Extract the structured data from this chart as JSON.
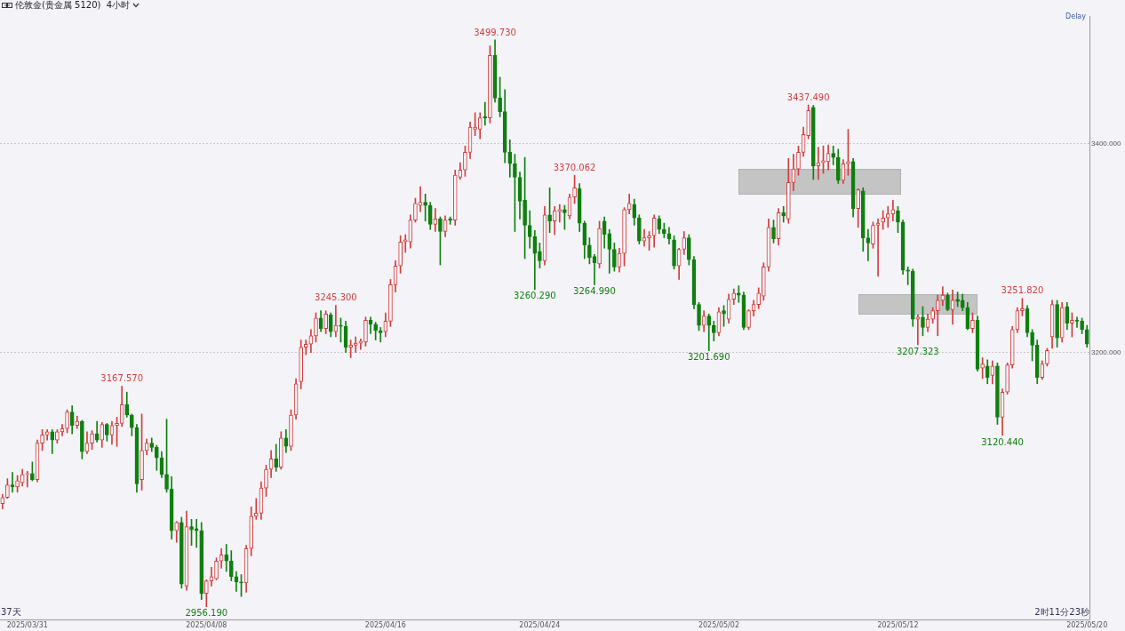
{
  "chart_data": {
    "type": "candlestick",
    "title": "伦敦金(贵金属 5120)  4小时",
    "categories": [
      null,
      null,
      null,
      null,
      null,
      "2025/03/31",
      null,
      null,
      null,
      null,
      null,
      null,
      null,
      null,
      null,
      null,
      null,
      null,
      null,
      null,
      null,
      null,
      null,
      null,
      null,
      null,
      null,
      null,
      null,
      null,
      null,
      null,
      null,
      null,
      null,
      null,
      null,
      null,
      null,
      null,
      null,
      "2025/04/08",
      null,
      null,
      null,
      null,
      null,
      null,
      null,
      null,
      null,
      null,
      null,
      null,
      null,
      null,
      null,
      null,
      null,
      null,
      null,
      null,
      null,
      null,
      null,
      null,
      null,
      null,
      null,
      null,
      null,
      null,
      null,
      null,
      null,
      null,
      null,
      "2025/04/16",
      null,
      null,
      null,
      null,
      null,
      null,
      null,
      null,
      null,
      null,
      null,
      null,
      null,
      null,
      null,
      null,
      null,
      null,
      null,
      null,
      null,
      null,
      null,
      null,
      null,
      null,
      null,
      null,
      null,
      null,
      "2025/04/24",
      null,
      null,
      null,
      null,
      null,
      null,
      null,
      null,
      null,
      null,
      null,
      null,
      null,
      null,
      null,
      null,
      null,
      null,
      null,
      null,
      null,
      null,
      null,
      null,
      null,
      null,
      null,
      null,
      null,
      null,
      null,
      null,
      null,
      null,
      null,
      "2025/05/02",
      null,
      null,
      null,
      null,
      null,
      null,
      null,
      null,
      null,
      null,
      null,
      null,
      null,
      null,
      null,
      null,
      null,
      null,
      null,
      null,
      null,
      null,
      null,
      null,
      null,
      null,
      null,
      null,
      null,
      null,
      null,
      null,
      null,
      null,
      null,
      "2025/05/12",
      null,
      null,
      null,
      null,
      null,
      null,
      null,
      null,
      null,
      null,
      null,
      null,
      null,
      null,
      null,
      null,
      null,
      null,
      null,
      null,
      null,
      null,
      null,
      null,
      null,
      null,
      null,
      null,
      null,
      null,
      null,
      null,
      null,
      null,
      null,
      null,
      null,
      "2025/05/20"
    ],
    "ohlc": [
      [
        3055,
        3064,
        3050,
        3061
      ],
      [
        3061,
        3079,
        3060,
        3073
      ],
      [
        3073,
        3085,
        3066,
        3071
      ],
      [
        3071,
        3082,
        3066,
        3077
      ],
      [
        3075,
        3088,
        3072,
        3083
      ],
      [
        3083,
        3086,
        3071,
        3084
      ],
      [
        3084,
        3095,
        3077,
        3078
      ],
      [
        3078,
        3116,
        3076,
        3113
      ],
      [
        3113,
        3126,
        3106,
        3121
      ],
      [
        3121,
        3126,
        3116,
        3124
      ],
      [
        3124,
        3126,
        3103,
        3116
      ],
      [
        3116,
        3126,
        3113,
        3124
      ],
      [
        3124,
        3131,
        3120,
        3127
      ],
      [
        3127,
        3145,
        3123,
        3143
      ],
      [
        3143,
        3149,
        3122,
        3130
      ],
      [
        3130,
        3139,
        3127,
        3134
      ],
      [
        3134,
        3135,
        3098,
        3105
      ],
      [
        3105,
        3124,
        3103,
        3113
      ],
      [
        3113,
        3125,
        3107,
        3122
      ],
      [
        3122,
        3134,
        3114,
        3116
      ],
      [
        3116,
        3133,
        3109,
        3131
      ],
      [
        3131,
        3132,
        3115,
        3121
      ],
      [
        3121,
        3134,
        3112,
        3130
      ],
      [
        3130,
        3138,
        3110,
        3132
      ],
      [
        3132,
        3167.57,
        3129,
        3150
      ],
      [
        3150,
        3162,
        3138,
        3140
      ],
      [
        3140,
        3141,
        3120,
        3128
      ],
      [
        3128,
        3131,
        3066,
        3074
      ],
      [
        3078,
        3141,
        3068,
        3106
      ],
      [
        3106,
        3117,
        3102,
        3113
      ],
      [
        3113,
        3118,
        3105,
        3109
      ],
      [
        3109,
        3111,
        3087,
        3099
      ],
      [
        3099,
        3105,
        3080,
        3083
      ],
      [
        3083,
        3136,
        3066,
        3069
      ],
      [
        3069,
        3081,
        3021,
        3029
      ],
      [
        3029,
        3038,
        3018,
        3037
      ],
      [
        3037,
        3042,
        2974,
        2978
      ],
      [
        2976,
        3048,
        2972,
        3033
      ],
      [
        3033,
        3040,
        3015,
        3030
      ],
      [
        3031,
        3040,
        3013,
        3029
      ],
      [
        3029,
        3037,
        2963,
        2969
      ],
      [
        2969,
        2982,
        2956.19,
        2981
      ],
      [
        2981,
        2994,
        2976,
        2985
      ],
      [
        2983,
        3003,
        2982,
        3000
      ],
      [
        3000,
        3012,
        2993,
        3006
      ],
      [
        3006,
        3016,
        2990,
        3000
      ],
      [
        3000,
        3010,
        2981,
        2985
      ],
      [
        2985,
        2990,
        2971,
        2980
      ],
      [
        2980,
        2987,
        2966,
        2979
      ],
      [
        2979,
        3015,
        2970,
        3012
      ],
      [
        3012,
        3052,
        3005,
        3043
      ],
      [
        3043,
        3060,
        3040,
        3046
      ],
      [
        3046,
        3076,
        3040,
        3070
      ],
      [
        3070,
        3092,
        3062,
        3088
      ],
      [
        3088,
        3106,
        3080,
        3098
      ],
      [
        3098,
        3112,
        3086,
        3090
      ],
      [
        3090,
        3124,
        3088,
        3118
      ],
      [
        3118,
        3126,
        3104,
        3110
      ],
      [
        3110,
        3145,
        3106,
        3140
      ],
      [
        3140,
        3175,
        3136,
        3170
      ],
      [
        3172,
        3212,
        3165,
        3205
      ],
      [
        3205,
        3212,
        3198,
        3208
      ],
      [
        3208,
        3222,
        3200,
        3216
      ],
      [
        3216,
        3238,
        3210,
        3233
      ],
      [
        3233,
        3240,
        3220,
        3223
      ],
      [
        3223,
        3240,
        3218,
        3237
      ],
      [
        3236,
        3238,
        3215,
        3220
      ],
      [
        3220,
        3245.3,
        3215,
        3226
      ],
      [
        3226,
        3233,
        3210,
        3225
      ],
      [
        3225,
        3230,
        3200,
        3205
      ],
      [
        3205,
        3212,
        3195,
        3207
      ],
      [
        3207,
        3215,
        3200,
        3209
      ],
      [
        3209,
        3213,
        3203,
        3211
      ],
      [
        3210,
        3234,
        3206,
        3231
      ],
      [
        3231,
        3234,
        3218,
        3227
      ],
      [
        3227,
        3229,
        3212,
        3221
      ],
      [
        3221,
        3224,
        3210,
        3219
      ],
      [
        3220,
        3238,
        3215,
        3230
      ],
      [
        3230,
        3270,
        3225,
        3265
      ],
      [
        3265,
        3288,
        3258,
        3283
      ],
      [
        3283,
        3312,
        3276,
        3306
      ],
      [
        3306,
        3313,
        3296,
        3308
      ],
      [
        3306,
        3332,
        3300,
        3327
      ],
      [
        3327,
        3348,
        3325,
        3343
      ],
      [
        3341,
        3359,
        3335,
        3344
      ],
      [
        3344,
        3352,
        3326,
        3341
      ],
      [
        3341,
        3344,
        3318,
        3323
      ],
      [
        3323,
        3338,
        3316,
        3328
      ],
      [
        3328,
        3330,
        3284,
        3316
      ],
      [
        3316,
        3331,
        3311,
        3327
      ],
      [
        3328,
        3330,
        3323,
        3327
      ],
      [
        3327,
        3375,
        3322,
        3370
      ],
      [
        3368,
        3382,
        3366,
        3375
      ],
      [
        3375,
        3398,
        3369,
        3392
      ],
      [
        3392,
        3421,
        3386,
        3416
      ],
      [
        3414,
        3430,
        3408,
        3416
      ],
      [
        3414,
        3430,
        3405,
        3425
      ],
      [
        3426,
        3440,
        3418,
        3425
      ],
      [
        3425,
        3494,
        3420,
        3485
      ],
      [
        3485,
        3499.73,
        3440,
        3444
      ],
      [
        3444,
        3464,
        3426,
        3431
      ],
      [
        3431,
        3452,
        3382,
        3392
      ],
      [
        3392,
        3404,
        3368,
        3381
      ],
      [
        3381,
        3390,
        3316,
        3368
      ],
      [
        3368,
        3373,
        3328,
        3345
      ],
      [
        3346,
        3387,
        3290,
        3322
      ],
      [
        3322,
        3336,
        3300,
        3311
      ],
      [
        3311,
        3317,
        3260.29,
        3295
      ],
      [
        3297,
        3305,
        3281,
        3288
      ],
      [
        3288,
        3340,
        3284,
        3332
      ],
      [
        3332,
        3358,
        3315,
        3326
      ],
      [
        3326,
        3340,
        3313,
        3336
      ],
      [
        3335,
        3342,
        3325,
        3337
      ],
      [
        3337,
        3341,
        3318,
        3334
      ],
      [
        3331,
        3352,
        3328,
        3349
      ],
      [
        3349,
        3370.062,
        3343,
        3358
      ],
      [
        3357,
        3362,
        3316,
        3324
      ],
      [
        3324,
        3326,
        3290,
        3303
      ],
      [
        3303,
        3310,
        3285,
        3291
      ],
      [
        3292,
        3294,
        3264.99,
        3286
      ],
      [
        3285,
        3326,
        3281,
        3319
      ],
      [
        3326,
        3330,
        3300,
        3313
      ],
      [
        3314,
        3318,
        3276,
        3299
      ],
      [
        3299,
        3305,
        3278,
        3282
      ],
      [
        3282,
        3300,
        3277,
        3295
      ],
      [
        3295,
        3339,
        3283,
        3337
      ],
      [
        3337,
        3352,
        3333,
        3343
      ],
      [
        3342,
        3347,
        3322,
        3329
      ],
      [
        3329,
        3332,
        3304,
        3307
      ],
      [
        3307,
        3318,
        3302,
        3310
      ],
      [
        3310,
        3316,
        3298,
        3312
      ],
      [
        3312,
        3332,
        3301,
        3329
      ],
      [
        3328,
        3331,
        3314,
        3318
      ],
      [
        3318,
        3324,
        3310,
        3314
      ],
      [
        3314,
        3320,
        3304,
        3309
      ],
      [
        3308,
        3312,
        3280,
        3283
      ],
      [
        3283,
        3300,
        3270,
        3299
      ],
      [
        3299,
        3316,
        3294,
        3310
      ],
      [
        3310,
        3313,
        3284,
        3289
      ],
      [
        3289,
        3292,
        3242,
        3246
      ],
      [
        3246,
        3248,
        3221,
        3226
      ],
      [
        3226,
        3240,
        3220,
        3235
      ],
      [
        3235,
        3237,
        3201.69,
        3226
      ],
      [
        3226,
        3230,
        3211,
        3219
      ],
      [
        3219,
        3243,
        3216,
        3239
      ],
      [
        3240,
        3245,
        3225,
        3237
      ],
      [
        3232,
        3256,
        3228,
        3251
      ],
      [
        3251,
        3261,
        3246,
        3257
      ],
      [
        3257,
        3264,
        3248,
        3255
      ],
      [
        3255,
        3258,
        3222,
        3224
      ],
      [
        3224,
        3241,
        3222,
        3240
      ],
      [
        3240,
        3250,
        3235,
        3246
      ],
      [
        3246,
        3262,
        3242,
        3257
      ],
      [
        3254,
        3286,
        3250,
        3282
      ],
      [
        3282,
        3328,
        3278,
        3320
      ],
      [
        3320,
        3327,
        3305,
        3309
      ],
      [
        3309,
        3338,
        3303,
        3334
      ],
      [
        3334,
        3340,
        3325,
        3331
      ],
      [
        3328,
        3386,
        3324,
        3363
      ],
      [
        3363,
        3390,
        3355,
        3376
      ],
      [
        3376,
        3398,
        3370,
        3392
      ],
      [
        3392,
        3416,
        3388,
        3409
      ],
      [
        3408,
        3437.49,
        3405,
        3432
      ],
      [
        3435,
        3437,
        3366,
        3379
      ],
      [
        3379,
        3397,
        3366,
        3382
      ],
      [
        3382,
        3398,
        3372,
        3384
      ],
      [
        3383,
        3399,
        3375,
        3391
      ],
      [
        3391,
        3398,
        3380,
        3387
      ],
      [
        3387,
        3395,
        3362,
        3365
      ],
      [
        3365,
        3385,
        3362,
        3381
      ],
      [
        3381,
        3414,
        3370,
        3383
      ],
      [
        3383,
        3386,
        3330,
        3338
      ],
      [
        3338,
        3357,
        3320,
        3356
      ],
      [
        3355,
        3358,
        3297,
        3310
      ],
      [
        3310,
        3318,
        3288,
        3305
      ],
      [
        3304,
        3325,
        3300,
        3322
      ],
      [
        3322,
        3328,
        3273,
        3324
      ],
      [
        3325,
        3336,
        3318,
        3329
      ],
      [
        3329,
        3340,
        3320,
        3333
      ],
      [
        3333,
        3346,
        3326,
        3337
      ],
      [
        3336,
        3340,
        3315,
        3325
      ],
      [
        3325,
        3327,
        3275,
        3279
      ],
      [
        3279,
        3282,
        3265,
        3278
      ],
      [
        3278,
        3280,
        3225,
        3232
      ],
      [
        3232,
        3236,
        3207.323,
        3234
      ],
      [
        3234,
        3244,
        3216,
        3224
      ],
      [
        3224,
        3237,
        3220,
        3232
      ],
      [
        3232,
        3243,
        3228,
        3240
      ],
      [
        3240,
        3255,
        3216,
        3250
      ],
      [
        3250,
        3263,
        3245,
        3255
      ],
      [
        3255,
        3257,
        3240,
        3241
      ],
      [
        3241,
        3260,
        3227,
        3250
      ],
      [
        3251,
        3258,
        3244,
        3249
      ],
      [
        3250,
        3256,
        3240,
        3243
      ],
      [
        3243,
        3248,
        3222,
        3223
      ],
      [
        3223,
        3238,
        3219,
        3231
      ],
      [
        3231,
        3235,
        3182,
        3184
      ],
      [
        3185,
        3195,
        3175,
        3189
      ],
      [
        3187,
        3193,
        3170,
        3176
      ],
      [
        3178,
        3192,
        3170,
        3187
      ],
      [
        3187,
        3190,
        3131,
        3138
      ],
      [
        3138,
        3165,
        3120.44,
        3162
      ],
      [
        3162,
        3190,
        3160,
        3188
      ],
      [
        3188,
        3225,
        3185,
        3222
      ],
      [
        3222,
        3243,
        3219,
        3240
      ],
      [
        3240,
        3251.82,
        3235,
        3242
      ],
      [
        3242,
        3245,
        3215,
        3219
      ],
      [
        3219,
        3222,
        3192,
        3207
      ],
      [
        3207,
        3212,
        3170,
        3176
      ],
      [
        3176,
        3192,
        3174,
        3189
      ],
      [
        3189,
        3204,
        3187,
        3202
      ],
      [
        3215,
        3250,
        3204,
        3246
      ],
      [
        3246,
        3250,
        3205,
        3214
      ],
      [
        3214,
        3248,
        3210,
        3243
      ],
      [
        3244,
        3248,
        3222,
        3228
      ],
      [
        3228,
        3238,
        3215,
        3231
      ],
      [
        3231,
        3234,
        3224,
        3230
      ],
      [
        3230,
        3233,
        3218,
        3222
      ],
      [
        3222,
        3226,
        3205,
        3208
      ]
    ],
    "colors": [
      "#d43c3c",
      "#d43c3c",
      "#0f7f0f",
      "#d43c3c",
      "#d43c3c",
      "#d43c3c",
      "#0f7f0f",
      "#d43c3c",
      "#d43c3c",
      "#d43c3c",
      "#0f7f0f",
      "#d43c3c",
      "#d43c3c",
      "#d43c3c",
      "#0f7f0f",
      "#d43c3c",
      "#0f7f0f",
      "#d43c3c",
      "#d43c3c",
      "#0f7f0f",
      "#d43c3c",
      "#0f7f0f",
      "#d43c3c",
      "#d43c3c",
      "#d43c3c",
      "#0f7f0f",
      "#0f7f0f",
      "#0f7f0f",
      "#d43c3c",
      "#d43c3c",
      "#0f7f0f",
      "#0f7f0f",
      "#0f7f0f",
      "#0f7f0f",
      "#0f7f0f",
      "#d43c3c",
      "#0f7f0f",
      "#d43c3c",
      "#0f7f0f",
      "#0f7f0f",
      "#0f7f0f",
      "#d43c3c",
      "#d43c3c",
      "#d43c3c",
      "#d43c3c",
      "#0f7f0f",
      "#0f7f0f",
      "#0f7f0f",
      "#0f7f0f",
      "#d43c3c",
      "#d43c3c",
      "#d43c3c",
      "#d43c3c",
      "#d43c3c",
      "#d43c3c",
      "#0f7f0f",
      "#d43c3c",
      "#0f7f0f",
      "#d43c3c",
      "#d43c3c",
      "#d43c3c",
      "#d43c3c",
      "#d43c3c",
      "#d43c3c",
      "#0f7f0f",
      "#d43c3c",
      "#0f7f0f",
      "#d43c3c",
      "#0f7f0f",
      "#0f7f0f",
      "#d43c3c",
      "#d43c3c",
      "#d43c3c",
      "#d43c3c",
      "#0f7f0f",
      "#0f7f0f",
      "#0f7f0f",
      "#d43c3c",
      "#d43c3c",
      "#d43c3c",
      "#d43c3c",
      "#d43c3c",
      "#d43c3c",
      "#d43c3c",
      "#d43c3c",
      "#0f7f0f",
      "#0f7f0f",
      "#d43c3c",
      "#0f7f0f",
      "#d43c3c",
      "#0f7f0f",
      "#d43c3c",
      "#d43c3c",
      "#d43c3c",
      "#d43c3c",
      "#d43c3c",
      "#d43c3c",
      "#0f7f0f",
      "#d43c3c",
      "#0f7f0f",
      "#0f7f0f",
      "#0f7f0f",
      "#0f7f0f",
      "#0f7f0f",
      "#0f7f0f",
      "#0f7f0f",
      "#0f7f0f",
      "#0f7f0f",
      "#0f7f0f",
      "#d43c3c",
      "#0f7f0f",
      "#d43c3c",
      "#d43c3c",
      "#0f7f0f",
      "#d43c3c",
      "#d43c3c",
      "#0f7f0f",
      "#0f7f0f",
      "#0f7f0f",
      "#0f7f0f",
      "#d43c3c",
      "#0f7f0f",
      "#0f7f0f",
      "#0f7f0f",
      "#d43c3c",
      "#d43c3c",
      "#d43c3c",
      "#0f7f0f",
      "#0f7f0f",
      "#d43c3c",
      "#d43c3c",
      "#d43c3c",
      "#0f7f0f",
      "#0f7f0f",
      "#0f7f0f",
      "#0f7f0f",
      "#d43c3c",
      "#d43c3c",
      "#0f7f0f",
      "#0f7f0f",
      "#0f7f0f",
      "#d43c3c",
      "#0f7f0f",
      "#0f7f0f",
      "#d43c3c",
      "#0f7f0f",
      "#d43c3c",
      "#d43c3c",
      "#0f7f0f",
      "#0f7f0f",
      "#d43c3c",
      "#d43c3c",
      "#d43c3c",
      "#d43c3c",
      "#d43c3c",
      "#0f7f0f",
      "#d43c3c",
      "#0f7f0f",
      "#d43c3c",
      "#d43c3c",
      "#d43c3c",
      "#d43c3c",
      "#d43c3c",
      "#0f7f0f",
      "#d43c3c",
      "#d43c3c",
      "#d43c3c",
      "#0f7f0f",
      "#0f7f0f",
      "#d43c3c",
      "#d43c3c",
      "#0f7f0f",
      "#d43c3c",
      "#0f7f0f",
      "#0f7f0f",
      "#d43c3c",
      "#d43c3c",
      "#d43c3c",
      "#d43c3c",
      "#d43c3c",
      "#0f7f0f",
      "#0f7f0f",
      "#0f7f0f",
      "#0f7f0f",
      "#d43c3c",
      "#0f7f0f",
      "#d43c3c",
      "#d43c3c",
      "#d43c3c",
      "#d43c3c",
      "#0f7f0f",
      "#d43c3c",
      "#0f7f0f",
      "#0f7f0f",
      "#0f7f0f",
      "#d43c3c",
      "#0f7f0f",
      "#d43c3c",
      "#0f7f0f",
      "#d43c3c",
      "#0f7f0f",
      "#d43c3c",
      "#d43c3c",
      "#d43c3c",
      "#d43c3c",
      "#d43c3c",
      "#0f7f0f",
      "#0f7f0f",
      "#0f7f0f",
      "#d43c3c",
      "#d43c3c",
      "#d43c3c",
      "#0f7f0f",
      "#d43c3c",
      "#0f7f0f",
      "#d43c3c",
      "#0f7f0f",
      "#0f7f0f",
      "#0f7f0f"
    ],
    "ylim": [
      2944,
      3522
    ],
    "yticks": [
      {
        "value": 3200,
        "label": "3200.000"
      },
      {
        "value": 3400,
        "label": "3400.000"
      }
    ],
    "grid": "y",
    "annotations": [
      "Delay",
      "37天",
      "2时11分23秒",
      {
        "text": "3499.730",
        "y": 3499.73
      },
      {
        "text": "3437.490",
        "y": 3437.49
      },
      {
        "text": "3370.062",
        "y": 3370.062
      },
      {
        "text": "3245.300",
        "y": 3245.3
      },
      {
        "text": "3167.570",
        "y": 3167.57
      },
      {
        "text": "3251.820",
        "y": 3251.82
      },
      {
        "text": "3260.290",
        "y": 3260.29
      },
      {
        "text": "3264.990",
        "y": 3264.99
      },
      {
        "text": "3201.690",
        "y": 3201.69
      },
      {
        "text": "3207.323",
        "y": 3207.323
      },
      {
        "text": "3120.440",
        "y": 3120.44
      },
      {
        "text": "2956.190",
        "y": 2956.19
      }
    ]
  }
}
